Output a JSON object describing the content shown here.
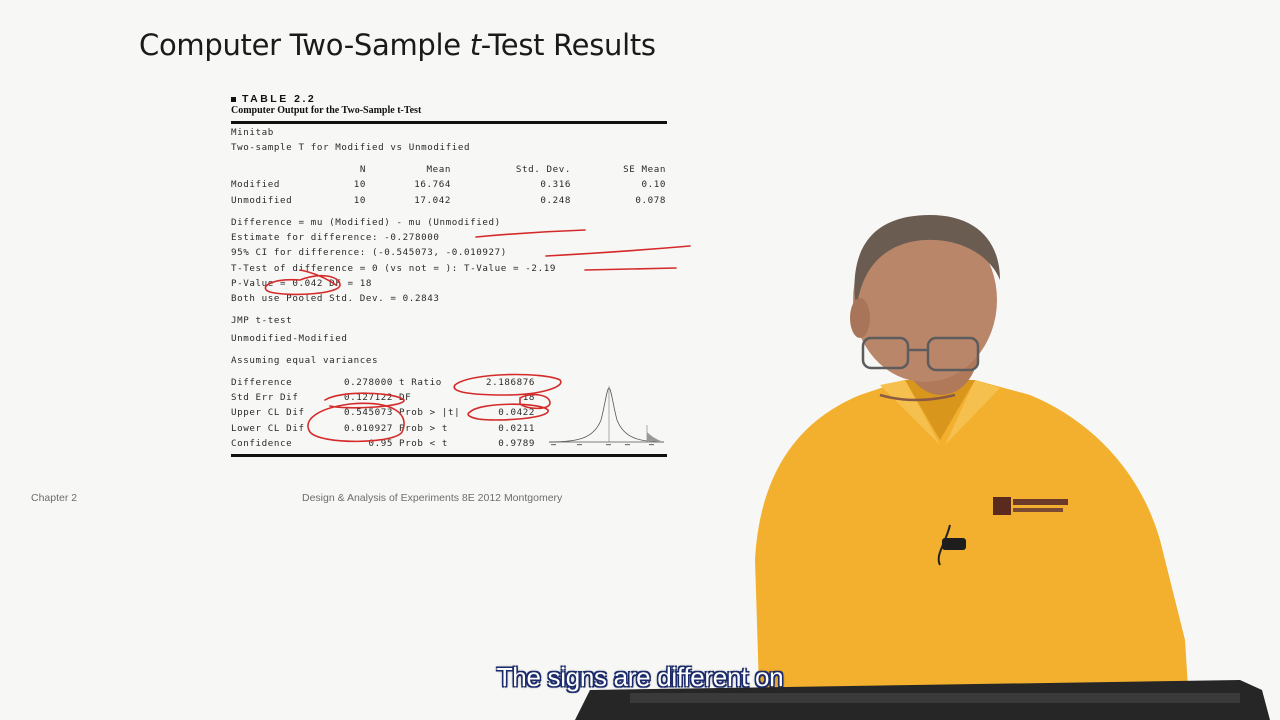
{
  "slide": {
    "title_pre": "Computer Two-Sample ",
    "title_ital": "t",
    "title_post": "-Test Results",
    "footer_chapter": "Chapter 2",
    "footer_source": "Design & Analysis of Experiments 8E 2012 Montgomery"
  },
  "table": {
    "number": "TABLE 2.2",
    "caption": "Computer Output for the Two-Sample t-Test",
    "minitab": {
      "label": "Minitab",
      "heading": "Two-sample T for Modified vs Unmodified",
      "columns": [
        "N",
        "Mean",
        "Std. Dev.",
        "SE Mean"
      ],
      "rows": [
        {
          "name": "Modified",
          "n": "10",
          "mean": "16.764",
          "sd": "0.316",
          "se": "0.10"
        },
        {
          "name": "Unmodified",
          "n": "10",
          "mean": "17.042",
          "sd": "0.248",
          "se": "0.078"
        }
      ],
      "lines": [
        "Difference = mu (Modified) - mu (Unmodified)",
        "Estimate for difference: -0.278000",
        "95% CI for difference: (-0.545073, -0.010927)",
        "T-Test of difference = 0 (vs not = ): T-Value = -2.19",
        "P-Value = 0.042 DF = 18",
        "Both use Pooled Std. Dev. = 0.2843"
      ]
    },
    "jmp": {
      "label": "JMP t-test",
      "heading": "Unmodified-Modified",
      "assumption": "Assuming equal variances",
      "rows": [
        {
          "l1": "Difference",
          "v1": "0.278000",
          "l2": "t Ratio",
          "v2": "2.186876"
        },
        {
          "l1": "Std Err Dif",
          "v1": "0.127122",
          "l2": "DF",
          "v2": "18"
        },
        {
          "l1": "Upper CL Dif",
          "v1": "0.545073",
          "l2": "Prob > |t|",
          "v2": "0.0422"
        },
        {
          "l1": "Lower CL Dif",
          "v1": "0.010927",
          "l2": "Prob > t",
          "v2": "0.0211"
        },
        {
          "l1": "Confidence",
          "v1": "0.95",
          "l2": "Prob < t",
          "v2": "0.9789"
        }
      ]
    }
  },
  "caption": {
    "text": "The signs are different on"
  },
  "colors": {
    "annotation": "#d42a2a",
    "shirt": "#f2b02e",
    "caption_outline": "#1a2a6a"
  },
  "icons": [
    "normal-curve-icon",
    "asu-logo-icon",
    "lapel-microphone-icon"
  ]
}
